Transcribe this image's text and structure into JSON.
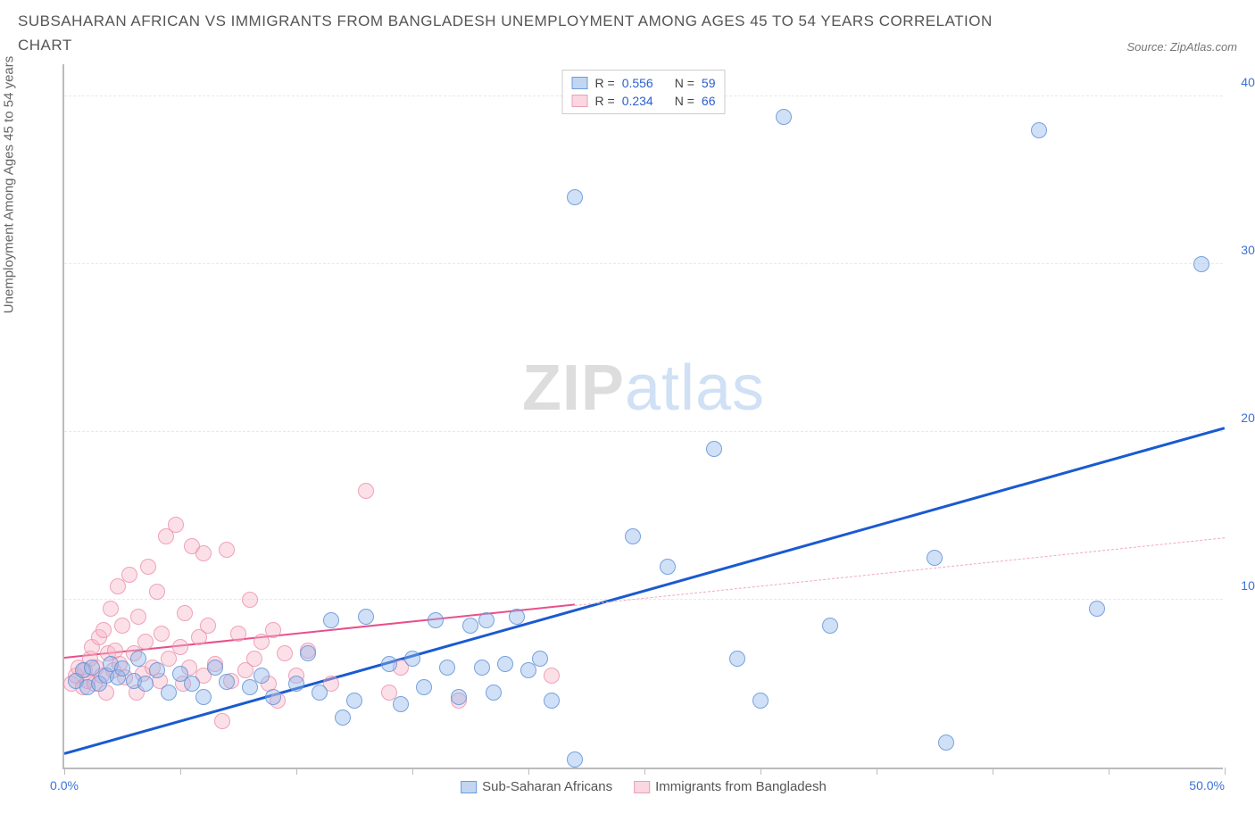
{
  "title": "SUBSAHARAN AFRICAN VS IMMIGRANTS FROM BANGLADESH UNEMPLOYMENT AMONG AGES 45 TO 54 YEARS CORRELATION CHART",
  "source": "Source: ZipAtlas.com",
  "yaxis_label": "Unemployment Among Ages 45 to 54 years",
  "watermark_a": "ZIP",
  "watermark_b": "atlas",
  "chart": {
    "type": "scatter",
    "xlim": [
      0,
      50
    ],
    "ylim": [
      0,
      42
    ],
    "xtick_positions": [
      0,
      5,
      10,
      15,
      20,
      25,
      30,
      35,
      40,
      45,
      50
    ],
    "xtick_labels": {
      "0": "0.0%",
      "50": "50.0%"
    },
    "ytick_positions": [
      10,
      20,
      30,
      40
    ],
    "ytick_labels": {
      "10": "10.0%",
      "20": "20.0%",
      "30": "30.0%",
      "40": "40.0%"
    },
    "background_color": "#ffffff",
    "grid_color": "#e8e8e8",
    "axis_color": "#bbbbbb",
    "marker_radius": 9,
    "series": [
      {
        "id": "blue",
        "name": "Sub-Saharan Africans",
        "marker_fill": "rgba(142,180,234,0.42)",
        "marker_stroke": "rgba(90,140,215,0.75)",
        "R": "0.556",
        "N": "59",
        "trend": {
          "color": "#1a5ad0",
          "width": 2.5,
          "x0": 0,
          "y0": 0.8,
          "x1": 50,
          "y1": 20.2,
          "solid_to_x": 50
        },
        "points": [
          [
            0.5,
            5.2
          ],
          [
            0.8,
            5.8
          ],
          [
            1.0,
            4.8
          ],
          [
            1.2,
            6.0
          ],
          [
            1.5,
            5.0
          ],
          [
            1.8,
            5.5
          ],
          [
            2.0,
            6.2
          ],
          [
            2.3,
            5.4
          ],
          [
            2.5,
            5.9
          ],
          [
            3.0,
            5.2
          ],
          [
            3.2,
            6.5
          ],
          [
            3.5,
            5.0
          ],
          [
            4.0,
            5.8
          ],
          [
            4.5,
            4.5
          ],
          [
            5.0,
            5.6
          ],
          [
            5.5,
            5.0
          ],
          [
            6.0,
            4.2
          ],
          [
            6.5,
            6.0
          ],
          [
            7.0,
            5.1
          ],
          [
            8.0,
            4.8
          ],
          [
            8.5,
            5.5
          ],
          [
            9.0,
            4.2
          ],
          [
            10.0,
            5.0
          ],
          [
            10.5,
            6.8
          ],
          [
            11.0,
            4.5
          ],
          [
            11.5,
            8.8
          ],
          [
            12.0,
            3.0
          ],
          [
            12.5,
            4.0
          ],
          [
            13.0,
            9.0
          ],
          [
            14.0,
            6.2
          ],
          [
            14.5,
            3.8
          ],
          [
            15.0,
            6.5
          ],
          [
            15.5,
            4.8
          ],
          [
            16.0,
            8.8
          ],
          [
            16.5,
            6.0
          ],
          [
            17.0,
            4.2
          ],
          [
            17.5,
            8.5
          ],
          [
            18.0,
            6.0
          ],
          [
            18.2,
            8.8
          ],
          [
            18.5,
            4.5
          ],
          [
            19.0,
            6.2
          ],
          [
            19.5,
            9.0
          ],
          [
            20.0,
            5.8
          ],
          [
            20.5,
            6.5
          ],
          [
            21.0,
            4.0
          ],
          [
            22.0,
            0.5
          ],
          [
            22.0,
            34.0
          ],
          [
            24.5,
            13.8
          ],
          [
            26.0,
            12.0
          ],
          [
            28.0,
            19.0
          ],
          [
            29.0,
            6.5
          ],
          [
            30.0,
            4.0
          ],
          [
            31.0,
            38.8
          ],
          [
            33.0,
            8.5
          ],
          [
            37.5,
            12.5
          ],
          [
            38.0,
            1.5
          ],
          [
            42.0,
            38.0
          ],
          [
            44.5,
            9.5
          ],
          [
            49.0,
            30.0
          ]
        ]
      },
      {
        "id": "pink",
        "name": "Immigrants from Bangladesh",
        "marker_fill": "rgba(248,180,200,0.42)",
        "marker_stroke": "rgba(235,140,170,0.75)",
        "R": "0.234",
        "N": "66",
        "trend": {
          "color": "#e84f8a",
          "width": 2,
          "x0": 0,
          "y0": 6.5,
          "x1": 50,
          "y1": 13.7,
          "solid_to_x": 22
        },
        "points": [
          [
            0.3,
            5.0
          ],
          [
            0.5,
            5.5
          ],
          [
            0.6,
            6.0
          ],
          [
            0.8,
            4.8
          ],
          [
            0.9,
            5.8
          ],
          [
            1.0,
            5.2
          ],
          [
            1.1,
            6.5
          ],
          [
            1.2,
            7.2
          ],
          [
            1.3,
            5.0
          ],
          [
            1.4,
            6.0
          ],
          [
            1.5,
            7.8
          ],
          [
            1.6,
            5.5
          ],
          [
            1.7,
            8.2
          ],
          [
            1.8,
            4.5
          ],
          [
            1.9,
            6.8
          ],
          [
            2.0,
            9.5
          ],
          [
            2.1,
            5.8
          ],
          [
            2.2,
            7.0
          ],
          [
            2.3,
            10.8
          ],
          [
            2.4,
            6.2
          ],
          [
            2.5,
            8.5
          ],
          [
            2.6,
            5.4
          ],
          [
            2.8,
            11.5
          ],
          [
            3.0,
            6.8
          ],
          [
            3.1,
            4.5
          ],
          [
            3.2,
            9.0
          ],
          [
            3.4,
            5.6
          ],
          [
            3.5,
            7.5
          ],
          [
            3.6,
            12.0
          ],
          [
            3.8,
            6.0
          ],
          [
            4.0,
            10.5
          ],
          [
            4.1,
            5.2
          ],
          [
            4.2,
            8.0
          ],
          [
            4.4,
            13.8
          ],
          [
            4.5,
            6.5
          ],
          [
            4.8,
            14.5
          ],
          [
            5.0,
            7.2
          ],
          [
            5.1,
            5.0
          ],
          [
            5.2,
            9.2
          ],
          [
            5.4,
            6.0
          ],
          [
            5.5,
            13.2
          ],
          [
            5.8,
            7.8
          ],
          [
            6.0,
            5.5
          ],
          [
            6.0,
            12.8
          ],
          [
            6.2,
            8.5
          ],
          [
            6.5,
            6.2
          ],
          [
            6.8,
            2.8
          ],
          [
            7.0,
            13.0
          ],
          [
            7.2,
            5.2
          ],
          [
            7.5,
            8.0
          ],
          [
            7.8,
            5.8
          ],
          [
            8.0,
            10.0
          ],
          [
            8.2,
            6.5
          ],
          [
            8.5,
            7.5
          ],
          [
            8.8,
            5.0
          ],
          [
            9.0,
            8.2
          ],
          [
            9.2,
            4.0
          ],
          [
            9.5,
            6.8
          ],
          [
            10.0,
            5.5
          ],
          [
            10.5,
            7.0
          ],
          [
            11.5,
            5.0
          ],
          [
            13.0,
            16.5
          ],
          [
            14.0,
            4.5
          ],
          [
            14.5,
            6.0
          ],
          [
            17.0,
            4.0
          ],
          [
            21.0,
            5.5
          ]
        ]
      }
    ],
    "legend_top": {
      "rows": [
        {
          "swatch": "blue",
          "r_label": "R =",
          "r_val": "0.556",
          "n_label": "N =",
          "n_val": "59"
        },
        {
          "swatch": "pink",
          "r_label": "R =",
          "r_val": "0.234",
          "n_label": "N =",
          "n_val": "66"
        }
      ]
    },
    "legend_bottom": [
      {
        "swatch": "blue",
        "label": "Sub-Saharan Africans"
      },
      {
        "swatch": "pink",
        "label": "Immigrants from Bangladesh"
      }
    ]
  }
}
